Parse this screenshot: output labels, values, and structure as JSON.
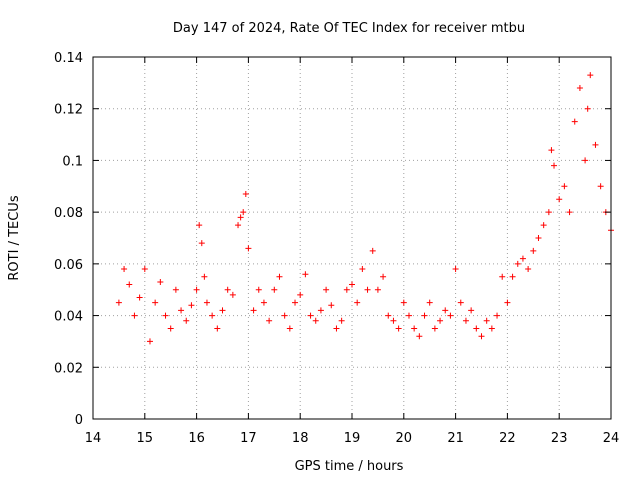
{
  "chart_data": {
    "type": "scatter",
    "title": "Day 147 of 2024, Rate Of TEC Index for receiver mtbu",
    "xlabel": "GPS time / hours",
    "ylabel": "ROTI / TECUs",
    "xlim": [
      14,
      24
    ],
    "ylim": [
      0,
      0.14
    ],
    "xticks": [
      14,
      15,
      16,
      17,
      18,
      19,
      20,
      21,
      22,
      23,
      24
    ],
    "xtick_labels": [
      "14",
      "15",
      "16",
      "17",
      "18",
      "19",
      "20",
      "21",
      "22",
      "23",
      "24"
    ],
    "yticks": [
      0,
      0.02,
      0.04,
      0.06,
      0.08,
      0.1,
      0.12,
      0.14
    ],
    "ytick_labels": [
      "0",
      "0.02",
      "0.04",
      "0.06",
      "0.08",
      "0.1",
      "0.12",
      "0.14"
    ],
    "grid": true,
    "marker": "+",
    "color": "#ff0000",
    "series": [
      {
        "name": "ROTI",
        "x": [
          14.5,
          14.6,
          14.7,
          14.8,
          14.9,
          15.0,
          15.1,
          15.2,
          15.3,
          15.4,
          15.5,
          15.6,
          15.7,
          15.8,
          15.9,
          16.0,
          16.05,
          16.1,
          16.15,
          16.2,
          16.3,
          16.4,
          16.5,
          16.6,
          16.7,
          16.8,
          16.85,
          16.9,
          16.95,
          17.0,
          17.1,
          17.2,
          17.3,
          17.4,
          17.5,
          17.6,
          17.7,
          17.8,
          17.9,
          18.0,
          18.1,
          18.2,
          18.3,
          18.4,
          18.5,
          18.6,
          18.7,
          18.8,
          18.9,
          19.0,
          19.1,
          19.2,
          19.3,
          19.4,
          19.5,
          19.6,
          19.7,
          19.8,
          19.9,
          20.0,
          20.1,
          20.2,
          20.3,
          20.4,
          20.5,
          20.6,
          20.7,
          20.8,
          20.9,
          21.0,
          21.1,
          21.2,
          21.3,
          21.4,
          21.5,
          21.6,
          21.7,
          21.8,
          21.9,
          22.0,
          22.1,
          22.2,
          22.3,
          22.4,
          22.5,
          22.6,
          22.7,
          22.8,
          22.85,
          22.9,
          23.0,
          23.1,
          23.2,
          23.3,
          23.4,
          23.5,
          23.55,
          23.6,
          23.7,
          23.8,
          23.9,
          24.0
        ],
        "values": [
          0.045,
          0.058,
          0.052,
          0.04,
          0.047,
          0.058,
          0.03,
          0.045,
          0.053,
          0.04,
          0.035,
          0.05,
          0.042,
          0.038,
          0.044,
          0.05,
          0.075,
          0.068,
          0.055,
          0.045,
          0.04,
          0.035,
          0.042,
          0.05,
          0.048,
          0.075,
          0.078,
          0.08,
          0.087,
          0.066,
          0.042,
          0.05,
          0.045,
          0.038,
          0.05,
          0.055,
          0.04,
          0.035,
          0.045,
          0.048,
          0.056,
          0.04,
          0.038,
          0.042,
          0.05,
          0.044,
          0.035,
          0.038,
          0.05,
          0.052,
          0.045,
          0.058,
          0.05,
          0.065,
          0.05,
          0.055,
          0.04,
          0.038,
          0.035,
          0.045,
          0.04,
          0.035,
          0.032,
          0.04,
          0.045,
          0.035,
          0.038,
          0.042,
          0.04,
          0.058,
          0.045,
          0.038,
          0.042,
          0.035,
          0.032,
          0.038,
          0.035,
          0.04,
          0.055,
          0.045,
          0.055,
          0.06,
          0.062,
          0.058,
          0.065,
          0.07,
          0.075,
          0.08,
          0.104,
          0.098,
          0.085,
          0.09,
          0.08,
          0.115,
          0.128,
          0.1,
          0.12,
          0.133,
          0.106,
          0.09,
          0.08,
          0.073
        ]
      }
    ]
  }
}
